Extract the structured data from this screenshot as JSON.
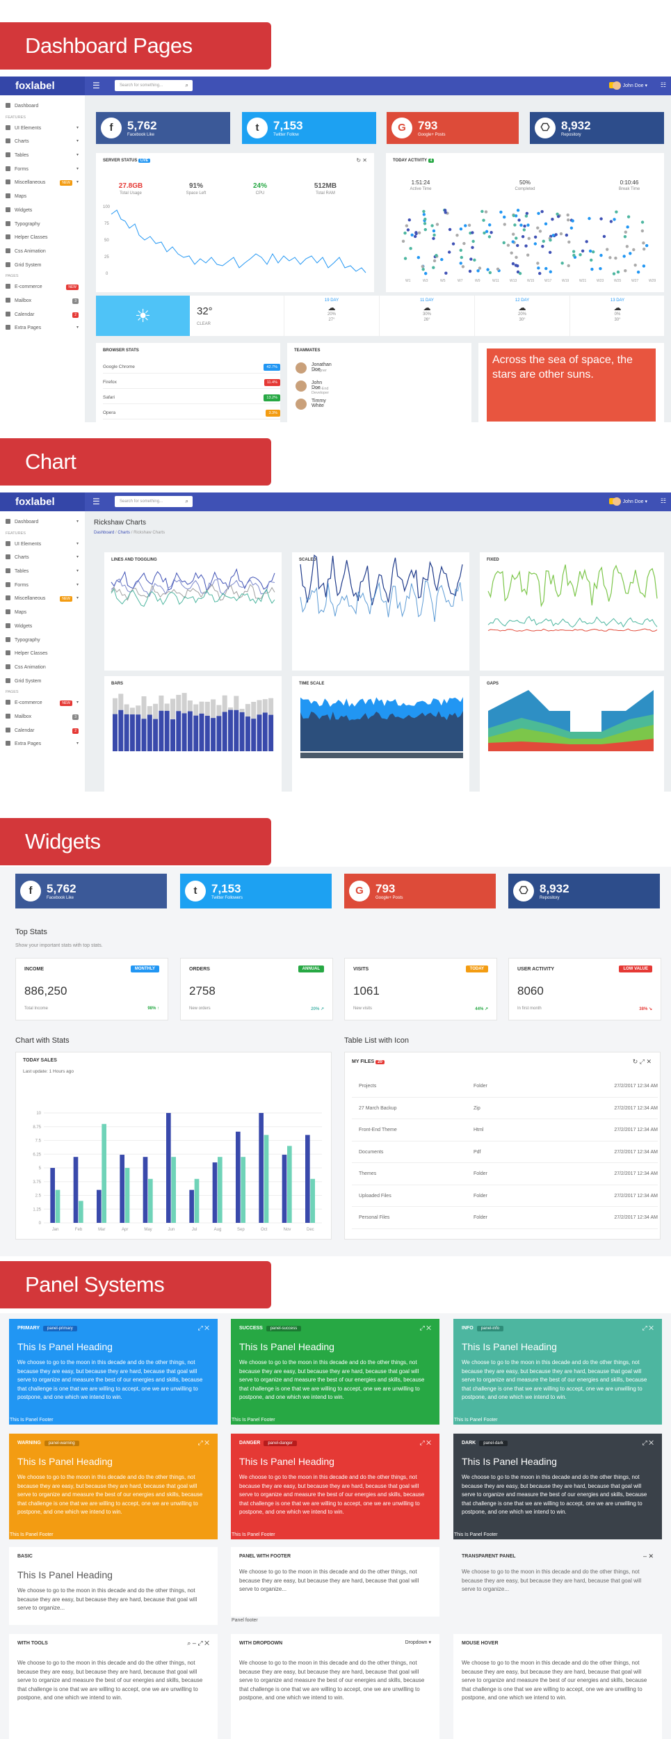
{
  "banners": {
    "dashboard": "Dashboard Pages",
    "chart": "Chart",
    "widgets": "Widgets",
    "panels": "Panel Systems"
  },
  "app": {
    "logo": "foxlabel",
    "search_placeholder": "Search for something...",
    "user": "John Doe ▾"
  },
  "sidebar": {
    "dashboard": "Dashboard",
    "features_header": "FEATURES",
    "ui_elements": "UI Elements",
    "charts": "Charts",
    "tables": "Tables",
    "forms": "Forms",
    "miscellaneous": "Miscellaneous",
    "misc_badge": "NEW",
    "maps": "Maps",
    "widgets": "Widgets",
    "typography": "Typography",
    "helper_classes": "Helper Classes",
    "css_animation": "Css Animation",
    "grid_system": "Grid System",
    "pages_header": "PAGES",
    "ecommerce": "E-commerce",
    "ecommerce_badge": "NEW",
    "mailbox": "Mailbox",
    "mailbox_badge": "3",
    "calendar": "Calendar",
    "calendar_badge": "2",
    "extra_pages": "Extra Pages"
  },
  "social": {
    "fb_num": "5,762",
    "fb_label": "Facebook Like",
    "tw_num": "7,153",
    "tw_label": "Twitter Follow",
    "gp_num": "793",
    "gp_label": "Google+ Posts",
    "rp_num": "8,932",
    "rp_label": "Repository",
    "tw_label_widgets": "Twitter Followers"
  },
  "server": {
    "title": "SERVER STATUS",
    "badge": "live",
    "s1_v": "27.8GB",
    "s1_l": "Total Usage",
    "s2_v": "91%",
    "s2_l": "Space Left",
    "s3_v": "24%",
    "s3_l": "CPU",
    "s4_v": "512MB",
    "s4_l": "Total RAM",
    "yticks": [
      "100",
      "75",
      "50",
      "25",
      "0"
    ]
  },
  "activity": {
    "title": "TODAY ACTIVITY",
    "badge": "4",
    "a1_v": "1:51:24",
    "a1_l": "Active Time",
    "a2_v": "50%",
    "a2_l": "Completed",
    "a3_v": "0:10:46",
    "a3_l": "Break Time"
  },
  "weather": {
    "temp": "32°",
    "cond": "CLEAR",
    "days": [
      {
        "t": "19 DAY",
        "p": "20%",
        "d": "27°"
      },
      {
        "t": "11 DAY",
        "p": "30%",
        "d": "26°"
      },
      {
        "t": "12 DAY",
        "p": "20%",
        "d": "30°"
      },
      {
        "t": "13 DAY",
        "p": "0%",
        "d": "30°"
      }
    ]
  },
  "browser": {
    "title": "BROWSER STATS",
    "items": [
      {
        "n": "Google Chrome",
        "v": "42.7%"
      },
      {
        "n": "Firefox",
        "v": "11.4%"
      },
      {
        "n": "Safari",
        "v": "13.2%"
      },
      {
        "n": "Opera",
        "v": "3.3%"
      }
    ]
  },
  "team": {
    "title": "TEAMMATES",
    "m": [
      {
        "n": "Jonathan Doe",
        "r": "Designer"
      },
      {
        "n": "John Doe",
        "r": "Front-End Developer"
      },
      {
        "n": "Timmy White",
        "r": ""
      }
    ]
  },
  "quote": "Across the sea of space, the stars are other suns.",
  "rickshaw": {
    "title": "Rickshaw Charts",
    "crumb1": "Dashboard",
    "crumb2": "Charts",
    "crumb3": "Rickshaw Charts",
    "c1": "LINES AND TOGGLING",
    "c2": "SCALED",
    "c3": "FIXED",
    "c4": "BARS",
    "c5": "TIME SCALE",
    "c6": "GAPS"
  },
  "topstats": {
    "title": "Top Stats",
    "subtitle": "Show your important stats with top stats.",
    "cards": [
      {
        "t": "INCOME",
        "b": "MONTHLY",
        "n": "886,250",
        "s": "Total Income",
        "p": "98% ↑"
      },
      {
        "t": "ORDERS",
        "b": "ANNUAL",
        "n": "2758",
        "s": "New orders",
        "p": "20% ↗"
      },
      {
        "t": "VISITS",
        "b": "TODAY",
        "n": "1061",
        "s": "New visits",
        "p": "44% ↗"
      },
      {
        "t": "USER ACTIVITY",
        "b": "LOW VALUE",
        "n": "8060",
        "s": "In first month",
        "p": "38% ↘"
      }
    ]
  },
  "chartstats": {
    "heading": "Chart with Stats",
    "title": "TODAY SALES",
    "sub": "Last update: 1 Hours ago"
  },
  "chart_data": {
    "type": "bar",
    "categories": [
      "Jan",
      "Feb",
      "Mar",
      "Apr",
      "May",
      "Jun",
      "Jul",
      "Aug",
      "Sep",
      "Oct",
      "Nov",
      "Dec"
    ],
    "series": [
      {
        "values": [
          5,
          6,
          3,
          6.2,
          6,
          10,
          3,
          5.5,
          8.3,
          10,
          6.2,
          8
        ]
      },
      {
        "values": [
          3,
          2,
          9,
          5,
          4,
          6,
          4,
          6,
          6,
          8,
          7,
          4
        ]
      }
    ],
    "ylim": [
      0,
      10
    ],
    "yticks": [
      "10",
      "8.75",
      "7.5",
      "6.25",
      "5",
      "3.75",
      "2.5",
      "1.25",
      "0"
    ]
  },
  "files": {
    "heading": "Table List with Icon",
    "title": "MY FILES",
    "badge": "20",
    "rows": [
      {
        "n": "Projects",
        "t": "Folder",
        "d": "27/2/2017 12:34 AM"
      },
      {
        "n": "27 March Backup",
        "t": "Zip",
        "d": "27/2/2017 12:34 AM"
      },
      {
        "n": "Front-End Theme",
        "t": "Html",
        "d": "27/2/2017 12:34 AM"
      },
      {
        "n": "Documents",
        "t": "Pdf",
        "d": "27/2/2017 12:34 AM"
      },
      {
        "n": "Themes",
        "t": "Folder",
        "d": "27/2/2017 12:34 AM"
      },
      {
        "n": "Uploaded Files",
        "t": "Folder",
        "d": "27/2/2017 12:34 AM"
      },
      {
        "n": "Personal Files",
        "t": "Folder",
        "d": "27/2/2017 12:34 AM"
      }
    ]
  },
  "panels": {
    "heading": "This Is Panel Heading",
    "body": "We choose to go to the moon in this decade and do the other things, not because they are easy, but because they are hard, because that goal will serve to organize and measure the best of our energies and skills, because that challenge is one that we are willing to accept, one we are unwilling to postpone, and one which we intend to win.",
    "short": "We choose to go to the moon in this decade and do the other things, not because they are easy, but because they are hard, because that goal will serve to organize...",
    "footer": "This Is Panel Footer",
    "footer2": "Panel footer",
    "primary": "PRIMARY",
    "primary_tag": "panel-primary",
    "success": "SUCCESS",
    "success_tag": "panel-success",
    "info": "INFO",
    "info_tag": "panel-info",
    "warning": "WARNING",
    "warning_tag": "panel-warning",
    "danger": "DANGER",
    "danger_tag": "panel-danger",
    "dark": "DARK",
    "dark_tag": "panel-dark",
    "basic": "BASIC",
    "withfooter": "PANEL WITH FOOTER",
    "transparent": "TRANSPARENT PANEL",
    "tools": "WITH TOOLS",
    "dropdown": "WITH DROPDOWN",
    "dropdown_btn": "Dropdown ▾",
    "hover": "MOUSE HOVER"
  },
  "colors": {
    "primary": "#2196f3",
    "success": "#27a844",
    "info": "#4db6a0",
    "warning": "#f39c12",
    "danger": "#e53935",
    "dark": "#3a4149",
    "red": "#d3373a",
    "indigo": "#3f51b5"
  }
}
